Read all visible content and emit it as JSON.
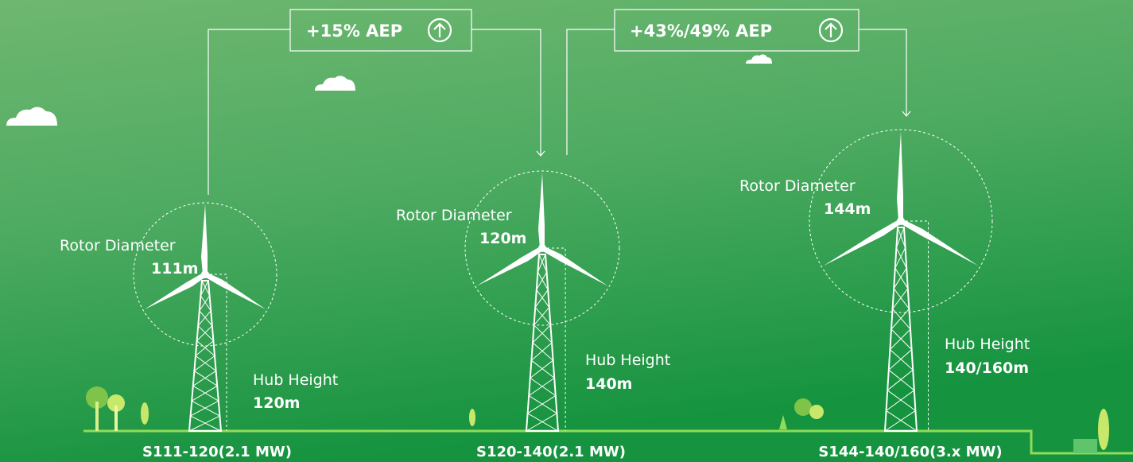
{
  "annotations": [
    {
      "label": "+15% AEP"
    },
    {
      "label": "+43%/49% AEP"
    }
  ],
  "turbines": [
    {
      "rotor_label": "Rotor Diameter",
      "rotor_value": "111m",
      "hub_label": "Hub Height",
      "hub_value": "120m",
      "model": "S111-120(2.1 MW)"
    },
    {
      "rotor_label": "Rotor Diameter",
      "rotor_value": "120m",
      "hub_label": "Hub Height",
      "hub_value": "140m",
      "model": "S120-140(2.1 MW)"
    },
    {
      "rotor_label": "Rotor Diameter",
      "rotor_value": "144m",
      "hub_label": "Hub Height",
      "hub_value": "140/160m",
      "model": "S144-140/160(3.x MW)"
    }
  ]
}
